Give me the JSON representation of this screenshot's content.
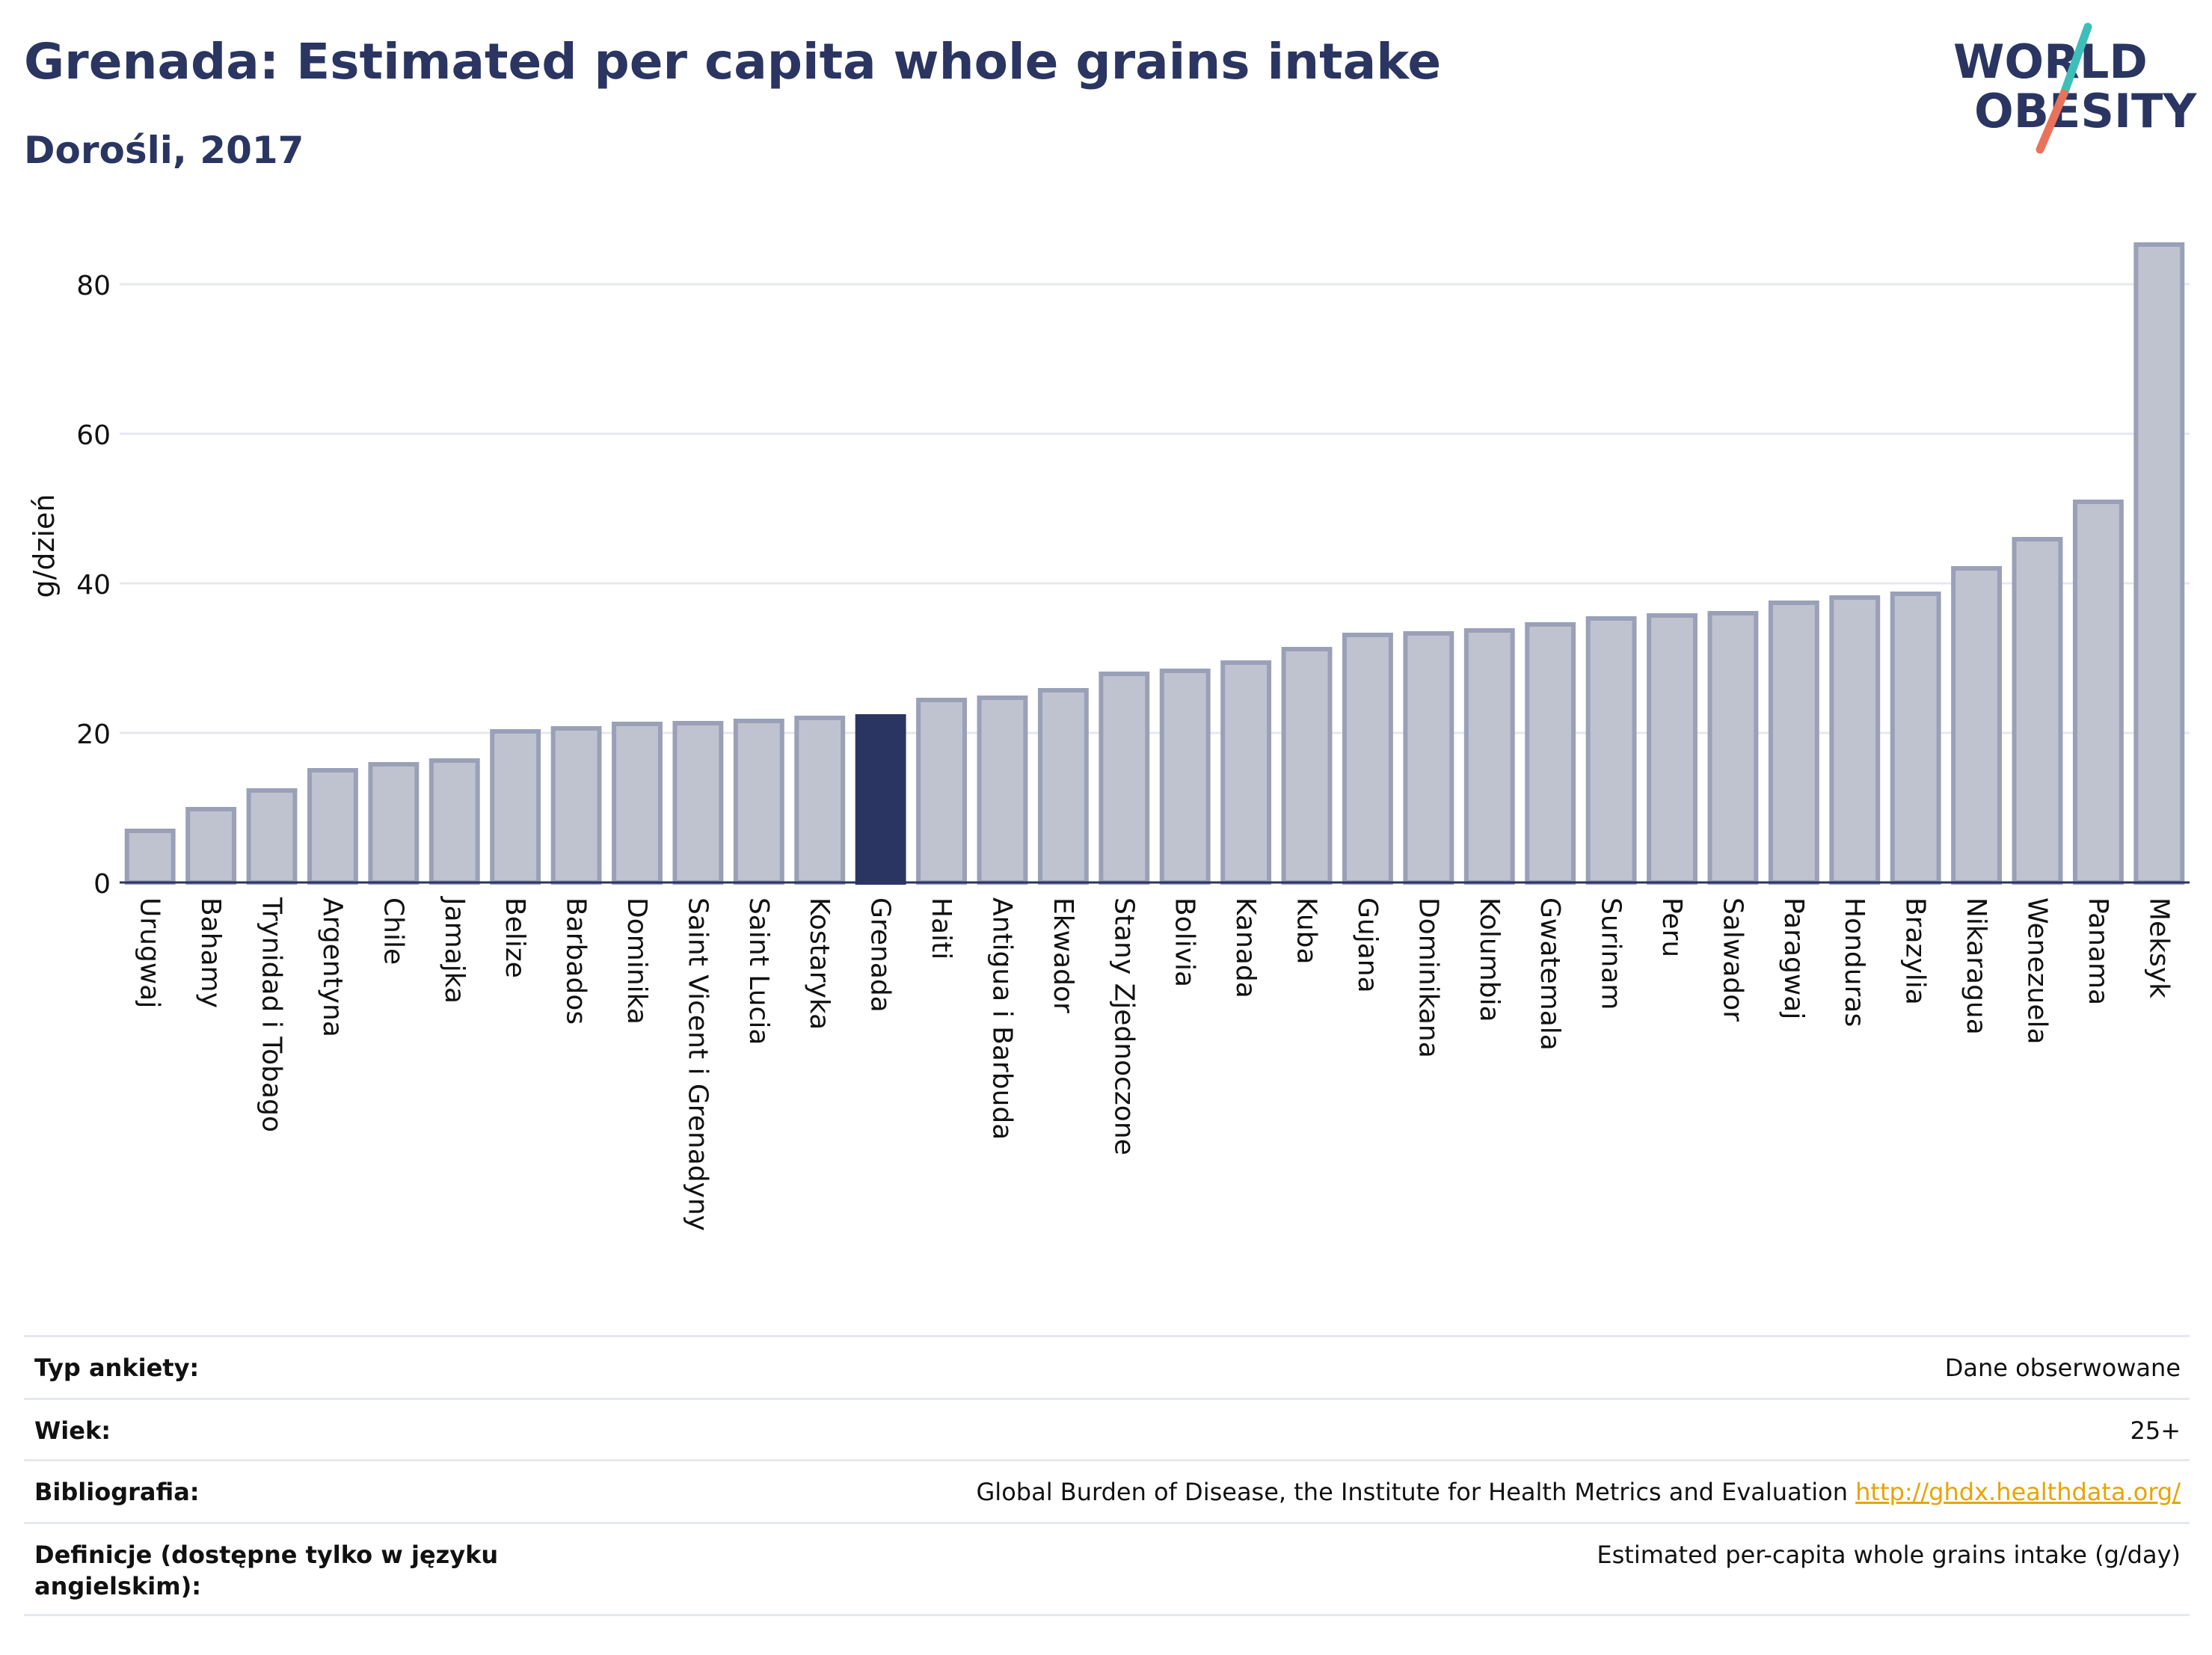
{
  "header": {
    "title": "Grenada: Estimated per capita whole grains intake",
    "subtitle": "Dorośli, 2017"
  },
  "logo": {
    "line1": "WORLD",
    "line2": "OBESITY",
    "accent_teal": "#3dbfb8",
    "accent_coral": "#e8735a"
  },
  "colors": {
    "bar": "#bfc3cf",
    "bar_border": "#9aa0b8",
    "highlight": "#2a3561",
    "grid": "#e6e8ef",
    "text": "#2a3561",
    "link": "#e8a400"
  },
  "chart_data": {
    "type": "bar",
    "title": "Grenada: Estimated per capita whole grains intake",
    "subtitle": "Dorośli, 2017",
    "ylabel": "g/dzień",
    "xlabel": "",
    "ylim": [
      0,
      88
    ],
    "yticks": [
      0,
      20,
      40,
      60,
      80
    ],
    "grid": true,
    "highlight": "Grenada",
    "categories": [
      "Urugwaj",
      "Bahamy",
      "Trynidad i Tobago",
      "Argentyna",
      "Chile",
      "Jamajka",
      "Belize",
      "Barbados",
      "Dominika",
      "Saint Vicent i Grenadyny",
      "Saint Lucia",
      "Kostaryka",
      "Grenada",
      "Haiti",
      "Antigua i Barbuda",
      "Ekwador",
      "Stany Zjednoczone",
      "Bolivia",
      "Kanada",
      "Kuba",
      "Gujana",
      "Dominikana",
      "Kolumbia",
      "Gwatemala",
      "Surinam",
      "Peru",
      "Salwador",
      "Paragwaj",
      "Honduras",
      "Brazylia",
      "Nikaragua",
      "Wenezuela",
      "Panama",
      "Meksyk"
    ],
    "values": [
      6.9,
      9.8,
      12.3,
      15.0,
      15.8,
      16.3,
      20.2,
      20.6,
      21.2,
      21.3,
      21.6,
      22.0,
      22.2,
      24.4,
      24.7,
      25.7,
      27.9,
      28.3,
      29.4,
      31.2,
      33.1,
      33.3,
      33.7,
      34.5,
      35.3,
      35.7,
      36.0,
      37.4,
      38.1,
      38.6,
      42.0,
      45.9,
      50.9,
      85.3
    ]
  },
  "meta": {
    "rows": [
      {
        "label": "Typ ankiety:",
        "value": "Dane obserwowane"
      },
      {
        "label": "Wiek:",
        "value": "25+"
      },
      {
        "label": "Bibliografia:",
        "value": "Global Burden of Disease, the Institute for Health Metrics and Evaluation",
        "link": "http://ghdx.healthdata.org/"
      },
      {
        "label": "Definicje (dostępne tylko w języku angielskim):",
        "value": "Estimated per-capita whole grains intake (g/day)"
      }
    ]
  }
}
